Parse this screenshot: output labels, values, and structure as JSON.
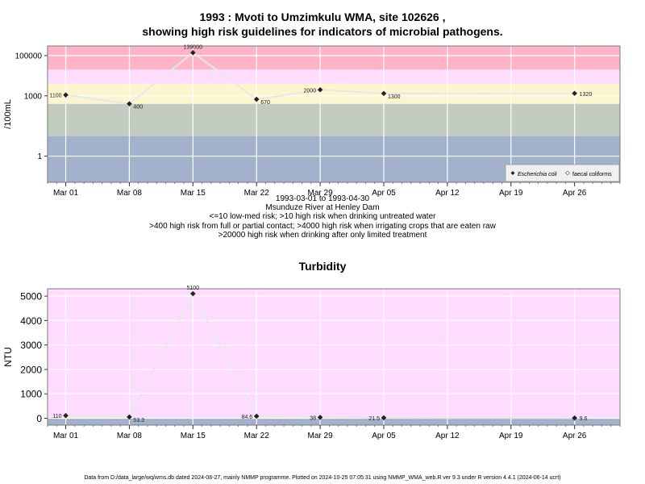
{
  "page": {
    "title_line1": "1993 : Mvoti to Umzimkulu WMA, site 102626 ,",
    "title_line2": "showing high risk guidelines for indicators of microbial pathogens.",
    "caption_lines": [
      "1993-03-01 to 1993-04-30",
      "Msunduze River at Henley Dam",
      "<=10 low-med risk; >10 high risk when drinking untreated water",
      ">400 high risk from full or partial contact; >4000 high risk when irrigating crops that are eaten raw",
      ">20000 high risk when drinking after only limited treatment"
    ],
    "footer": "Data from D:/data_large/wq/wms.db dated 2024-08-27, mainly NMMP programme. Plotted on 2024-10-25 07:05:31 using NMMP_WMA_web.R ver 9.3 under R version 4.4.1 (2024-06-14 ucrt)"
  },
  "chart_data": [
    {
      "type": "line",
      "ylabel": "/100mL",
      "yscale": "log",
      "ylim": [
        0.05,
        300000
      ],
      "yticks": [
        {
          "value": 1,
          "label": "1"
        },
        {
          "value": 1000,
          "label": "1000"
        },
        {
          "value": 100000,
          "label": "100000"
        }
      ],
      "x_range": [
        "1993-02-27",
        "1993-05-01"
      ],
      "x_ticks": [
        {
          "date": "1993-03-01",
          "label": "Mar 01"
        },
        {
          "date": "1993-03-08",
          "label": "Mar 08"
        },
        {
          "date": "1993-03-15",
          "label": "Mar 15"
        },
        {
          "date": "1993-03-22",
          "label": "Mar 22"
        },
        {
          "date": "1993-03-29",
          "label": "Mar 29"
        },
        {
          "date": "1993-04-05",
          "label": "Apr 05"
        },
        {
          "date": "1993-04-12",
          "label": "Apr 12"
        },
        {
          "date": "1993-04-19",
          "label": "Apr 19"
        },
        {
          "date": "1993-04-26",
          "label": "Apr 26"
        }
      ],
      "bands": [
        {
          "from": 0.05,
          "to": 10,
          "color": "#a2b2cc"
        },
        {
          "from": 10,
          "to": 400,
          "color": "#c3ccc1"
        },
        {
          "from": 400,
          "to": 4000,
          "color": "#fcf5cd"
        },
        {
          "from": 4000,
          "to": 20000,
          "color": "#fddcff"
        },
        {
          "from": 20000,
          "to": 300000,
          "color": "#feb4c6"
        }
      ],
      "legend": {
        "position": "bottom-right",
        "entries": [
          "Escherichia coli",
          "faecal coliforms"
        ]
      },
      "series": [
        {
          "name": "Escherichia coli",
          "points": [
            {
              "date": "1993-03-01",
              "value": 1100,
              "label": "1100"
            },
            {
              "date": "1993-03-08",
              "value": 400,
              "label": "400"
            },
            {
              "date": "1993-03-15",
              "value": 139000,
              "label": "139000"
            },
            {
              "date": "1993-03-22",
              "value": 670,
              "label": "670"
            },
            {
              "date": "1993-03-29",
              "value": 2000,
              "label": "2000"
            },
            {
              "date": "1993-04-05",
              "value": 1300,
              "label": "1300"
            },
            {
              "date": "1993-04-26",
              "value": 1320,
              "label": "1320"
            }
          ]
        }
      ],
      "grid": true,
      "colors": {
        "line": "#e8e8e8",
        "marker": "#222222",
        "grid": "#ffffff",
        "frame": "#7a7a7a"
      }
    },
    {
      "type": "line",
      "title": "Turbidity",
      "ylabel": "NTU",
      "yscale": "linear",
      "ylim": [
        -280,
        5300
      ],
      "yticks": [
        {
          "value": 0,
          "label": "0"
        },
        {
          "value": 1000,
          "label": "1000"
        },
        {
          "value": 2000,
          "label": "2000"
        },
        {
          "value": 3000,
          "label": "3000"
        },
        {
          "value": 4000,
          "label": "4000"
        },
        {
          "value": 5000,
          "label": "5000"
        }
      ],
      "x_range": [
        "1993-02-27",
        "1993-05-01"
      ],
      "x_ticks": [
        {
          "date": "1993-03-01",
          "label": "Mar 01"
        },
        {
          "date": "1993-03-08",
          "label": "Mar 08"
        },
        {
          "date": "1993-03-15",
          "label": "Mar 15"
        },
        {
          "date": "1993-03-22",
          "label": "Mar 22"
        },
        {
          "date": "1993-03-29",
          "label": "Mar 29"
        },
        {
          "date": "1993-04-05",
          "label": "Apr 05"
        },
        {
          "date": "1993-04-12",
          "label": "Apr 12"
        },
        {
          "date": "1993-04-19",
          "label": "Apr 19"
        },
        {
          "date": "1993-04-26",
          "label": "Apr 26"
        }
      ],
      "bands": [
        {
          "from": -280,
          "to": 25,
          "color": "#a2b2cc"
        },
        {
          "from": 25,
          "to": 5300,
          "color": "#fddcff"
        }
      ],
      "series": [
        {
          "name": "",
          "points": [
            {
              "date": "1993-03-01",
              "value": 110,
              "label": "110"
            },
            {
              "date": "1993-03-08",
              "value": 53.3,
              "label": "53.3"
            },
            {
              "date": "1993-03-15",
              "value": 5100,
              "label": "5100"
            },
            {
              "date": "1993-03-22",
              "value": 84.6,
              "label": "84.6"
            },
            {
              "date": "1993-03-29",
              "value": 38,
              "label": "38"
            },
            {
              "date": "1993-04-05",
              "value": 21.5,
              "label": "21.5"
            },
            {
              "date": "1993-04-26",
              "value": 9.6,
              "label": "9.6"
            }
          ]
        }
      ],
      "grid": true,
      "colors": {
        "line": "#e8e8e8",
        "marker": "#222222",
        "grid": "#ffffff",
        "frame": "#7a7a7a"
      }
    }
  ]
}
